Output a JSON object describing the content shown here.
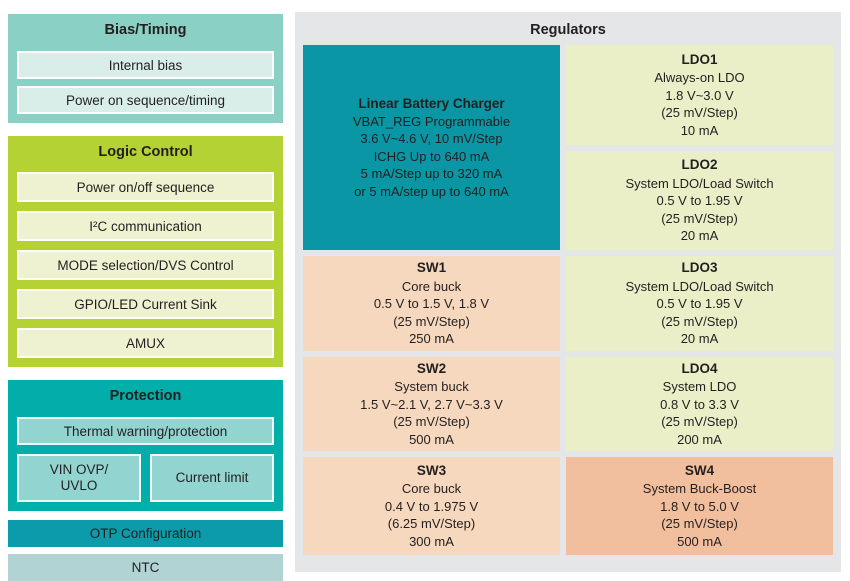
{
  "left_panel": {
    "bias_timing": {
      "title": "Bias/Timing",
      "items": [
        "Internal bias",
        "Power on sequence/timing"
      ]
    },
    "logic_control": {
      "title": "Logic Control",
      "items": [
        "Power on/off sequence",
        "I²C communication",
        "MODE selection/DVS Control",
        "GPIO/LED Current Sink",
        "AMUX"
      ]
    },
    "protection": {
      "title": "Protection",
      "items": [
        "Thermal warning/protection",
        "VIN OVP/\nUVLO",
        "Current limit"
      ]
    },
    "otp_label": "OTP Configuration",
    "ntc_label": "NTC"
  },
  "regulators": {
    "title": "Regulators",
    "blocks": [
      {
        "id": "linear-battery-charger",
        "title": "Linear Battery Charger",
        "lines": [
          "VBAT_REG Programmable",
          "3.6 V~4.6 V, 10 mV/Step",
          "ICHG Up to 640 mA",
          "5 mA/Step up to 320 mA",
          "or 5 mA/step up to 640 mA"
        ]
      },
      {
        "id": "ldo1",
        "title": "LDO1",
        "lines": [
          "Always-on LDO",
          "1.8 V~3.0 V",
          "(25 mV/Step)",
          "10 mA"
        ]
      },
      {
        "id": "ldo2",
        "title": "LDO2",
        "lines": [
          "System LDO/Load Switch",
          "0.5 V to 1.95 V",
          "(25 mV/Step)",
          "20 mA"
        ]
      },
      {
        "id": "sw1",
        "title": "SW1",
        "lines": [
          "Core buck",
          "0.5 V to 1.5 V, 1.8 V",
          "(25 mV/Step)",
          "250 mA"
        ]
      },
      {
        "id": "ldo3",
        "title": "LDO3",
        "lines": [
          "System LDO/Load Switch",
          "0.5 V to 1.95 V",
          "(25 mV/Step)",
          "20 mA"
        ]
      },
      {
        "id": "sw2",
        "title": "SW2",
        "lines": [
          "System buck",
          "1.5 V~2.1 V, 2.7 V~3.3 V",
          "(25 mV/Step)",
          "500 mA"
        ]
      },
      {
        "id": "ldo4",
        "title": "LDO4",
        "lines": [
          "System LDO",
          "0.8 V to 3.3 V",
          "(25 mV/Step)",
          "200 mA"
        ]
      },
      {
        "id": "sw3",
        "title": "SW3",
        "lines": [
          "Core buck",
          "0.4 V to 1.975 V",
          "(6.25 mV/Step)",
          "300 mA"
        ]
      },
      {
        "id": "sw4",
        "title": "SW4",
        "lines": [
          "System Buck-Boost",
          "1.8 V to 5.0 V",
          "(25 mV/Step)",
          "500 mA"
        ]
      }
    ]
  },
  "colors": {
    "bias_block": "#8BD0C4",
    "bias_item": "#DAEEE9",
    "logic_block": "#B4D233",
    "logic_item": "#EEF2D1",
    "protection_block": "#01AEA9",
    "protection_item": "#92D5D0",
    "otp_bar": "#0C9BAA",
    "ntc_bar": "#B1D3D4",
    "regulators_panel": "#E5E6E8",
    "charger_block": "#0A96A5",
    "ldo_block": "#EAEFC8",
    "sw_block": "#F6D8BE",
    "sw4_block": "#F2BF9E",
    "text": "#231F20"
  }
}
